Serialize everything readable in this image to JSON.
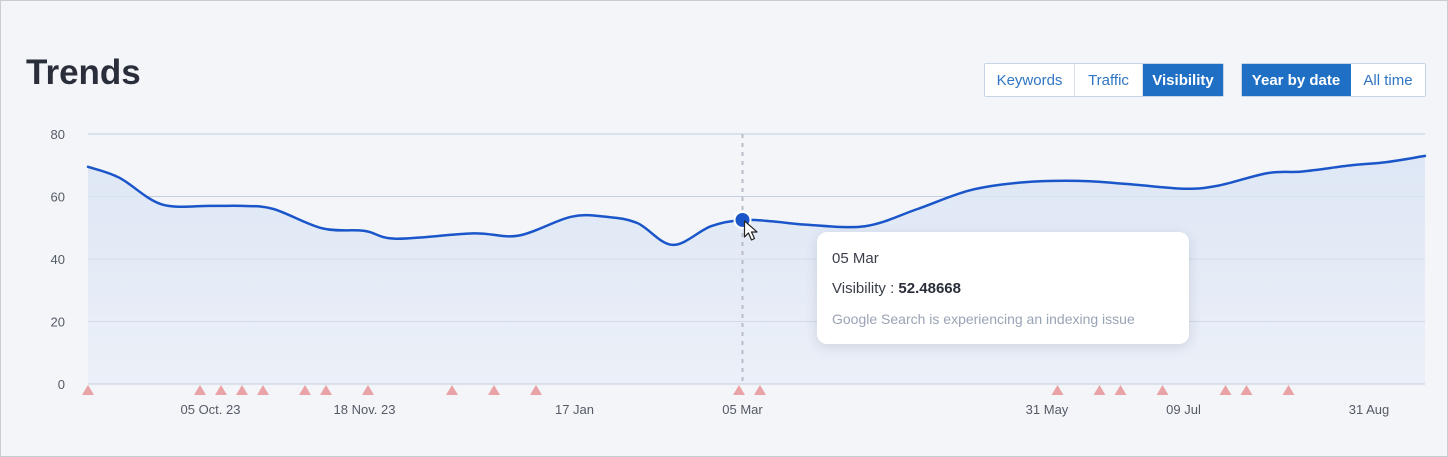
{
  "header": {
    "title": "Trends"
  },
  "metric_tabs": [
    {
      "label": "Keywords",
      "active": false
    },
    {
      "label": "Traffic",
      "active": false
    },
    {
      "label": "Visibility",
      "active": true
    }
  ],
  "range_tabs": [
    {
      "label": "Year by date",
      "active": true
    },
    {
      "label": "All time",
      "active": false
    }
  ],
  "tooltip": {
    "date": "05 Mar",
    "metric_label": "Visibility :",
    "value": "52.48668",
    "note": "Google Search is experiencing an indexing issue"
  },
  "colors": {
    "line": "#1a56c9",
    "area": "#dde6f5",
    "marker": "#e9a3a6",
    "grid": "#c5cedd",
    "active_tab": "#1f6fc5"
  },
  "chart_data": {
    "type": "area",
    "title": "Trends",
    "xlabel": "",
    "ylabel": "",
    "ylim": [
      0,
      80
    ],
    "yticks": [
      0,
      20,
      40,
      60,
      80
    ],
    "x_range": [
      "2023-08-31",
      "2024-09-16"
    ],
    "x_ticks": [
      {
        "date": "2023-10-05",
        "label": "05 Oct. 23"
      },
      {
        "date": "2023-11-18",
        "label": "18 Nov. 23"
      },
      {
        "date": "2024-01-17",
        "label": "17 Jan"
      },
      {
        "date": "2024-03-05",
        "label": "05 Mar"
      },
      {
        "date": "2024-05-31",
        "label": "31 May"
      },
      {
        "date": "2024-07-09",
        "label": "09 Jul"
      },
      {
        "date": "2024-08-31",
        "label": "31 Aug"
      }
    ],
    "grid": true,
    "legend": "none",
    "series": [
      {
        "x": [
          "2023-08-31",
          "2023-09-09",
          "2023-09-21",
          "2023-10-05",
          "2023-10-14",
          "2023-10-23",
          "2023-11-06",
          "2023-11-18",
          "2023-11-27",
          "2023-12-19",
          "2024-01-01",
          "2024-01-16",
          "2024-01-26",
          "2024-02-04",
          "2024-02-14",
          "2024-02-25",
          "2024-03-05",
          "2024-03-14",
          "2024-03-23",
          "2024-04-09",
          "2024-04-24",
          "2024-05-09",
          "2024-05-24",
          "2024-06-09",
          "2024-06-23",
          "2024-07-09",
          "2024-07-19",
          "2024-08-02",
          "2024-08-12",
          "2024-08-26",
          "2024-09-05",
          "2024-09-16"
        ],
        "y": [
          69.5,
          66,
          57.5,
          57,
          57,
          56,
          49.8,
          49,
          46.5,
          48.2,
          47.5,
          53.5,
          53.5,
          51.5,
          44.5,
          50.5,
          52.49,
          52,
          51,
          50.5,
          56,
          62,
          64.5,
          65,
          64,
          62.5,
          63.5,
          67.5,
          68,
          70,
          71,
          73
        ]
      }
    ],
    "selected_point": {
      "date": "2024-03-05",
      "value": 52.48668
    },
    "event_markers": [
      "2023-08-31",
      "2023-10-02",
      "2023-10-08",
      "2023-10-14",
      "2023-10-20",
      "2023-11-01",
      "2023-11-07",
      "2023-11-19",
      "2023-12-13",
      "2023-12-25",
      "2024-01-06",
      "2024-03-04",
      "2024-03-10",
      "2024-06-03",
      "2024-06-15",
      "2024-06-21",
      "2024-07-03",
      "2024-07-21",
      "2024-07-27",
      "2024-08-08"
    ]
  }
}
